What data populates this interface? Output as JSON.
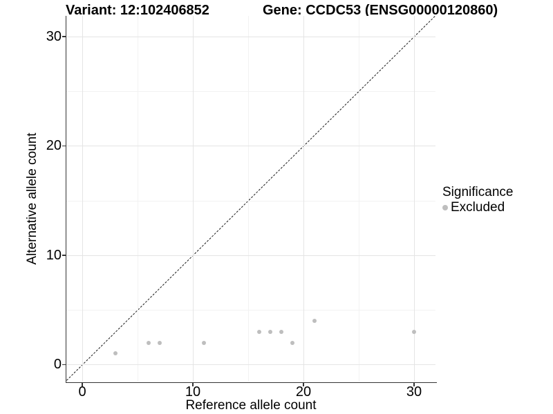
{
  "title": {
    "variant": "Variant: 12:102406852",
    "gene": "Gene: CCDC53 (ENSG00000120860)"
  },
  "axes": {
    "x": {
      "label": "Reference allele count",
      "ticks": [
        0,
        10,
        20,
        30
      ],
      "tick_labels": [
        "0",
        "10",
        "20",
        "30"
      ],
      "minor_ticks": [
        5,
        15,
        25
      ]
    },
    "y": {
      "label": "Alternative allele count",
      "ticks": [
        0,
        10,
        20,
        30
      ],
      "tick_labels": [
        "0",
        "10",
        "20",
        "30"
      ],
      "minor_ticks": [
        5,
        15,
        25
      ]
    }
  },
  "legend": {
    "title": "Significance",
    "items": [
      {
        "label": "Excluded",
        "color": "#bebebe"
      }
    ]
  },
  "colors": {
    "point": "#bebebe",
    "grid_major": "#e4e4e4",
    "grid_minor": "#f2f2f2",
    "axis": "#333333",
    "reference_line": "#1a1a1a",
    "background": "#ffffff"
  },
  "chart_data": {
    "type": "scatter",
    "title": "Variant: 12:102406852 | Gene: CCDC53 (ENSG00000120860)",
    "xlabel": "Reference allele count",
    "ylabel": "Alternative allele count",
    "xlim": [
      -1.5,
      32
    ],
    "ylim": [
      -1.6,
      31.9
    ],
    "grid": true,
    "legend_position": "right",
    "series": [
      {
        "name": "Excluded",
        "color": "#bebebe",
        "points": [
          [
            3,
            1
          ],
          [
            6,
            2
          ],
          [
            7,
            2
          ],
          [
            11,
            2
          ],
          [
            16,
            3
          ],
          [
            17,
            3
          ],
          [
            18,
            3
          ],
          [
            19,
            2
          ],
          [
            21,
            4
          ],
          [
            30,
            3
          ]
        ]
      }
    ],
    "reference_line": {
      "type": "identity-y-equals-x",
      "style": "dashed",
      "color": "#1a1a1a"
    }
  }
}
